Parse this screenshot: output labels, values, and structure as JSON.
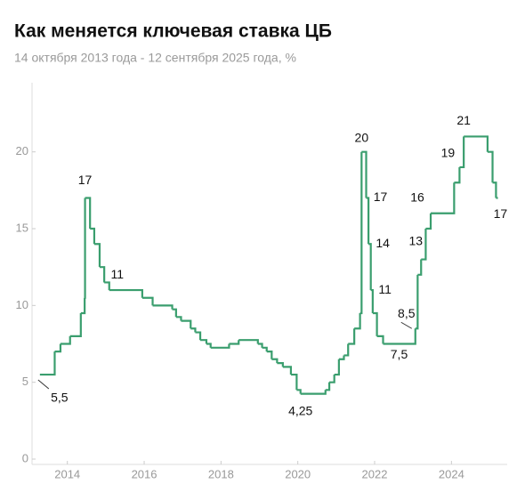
{
  "chart_data": {
    "type": "step",
    "title": "Как меняется ключевая ставка ЦБ",
    "subtitle": "14 октября 2013 года - 12 сентября 2025 года, %",
    "color": "#3a9e6e",
    "x": [
      2013.785,
      2014.17,
      2014.32,
      2014.57,
      2014.85,
      2014.95,
      2014.96,
      2015.09,
      2015.2,
      2015.34,
      2015.46,
      2015.59,
      2016.45,
      2016.72,
      2017.23,
      2017.33,
      2017.46,
      2017.71,
      2017.83,
      2017.96,
      2018.12,
      2018.23,
      2018.71,
      2018.96,
      2019.46,
      2019.57,
      2019.69,
      2019.82,
      2019.96,
      2020.11,
      2020.32,
      2020.47,
      2020.57,
      2021.22,
      2021.32,
      2021.45,
      2021.57,
      2021.7,
      2021.81,
      2021.97,
      2022.12,
      2022.16,
      2022.28,
      2022.34,
      2022.4,
      2022.45,
      2022.56,
      2022.72,
      2023.56,
      2023.62,
      2023.71,
      2023.83,
      2023.96,
      2024.57,
      2024.71,
      2024.82,
      2025.44,
      2025.57,
      2025.66,
      2025.7
    ],
    "values": [
      5.5,
      7,
      7.5,
      8,
      9.5,
      10.5,
      17,
      15,
      14,
      12.5,
      11.5,
      11,
      10.5,
      10,
      9.75,
      9.25,
      9,
      8.5,
      8.25,
      7.75,
      7.5,
      7.25,
      7.5,
      7.75,
      7.5,
      7.25,
      7,
      6.5,
      6.25,
      6,
      5.5,
      4.5,
      4.25,
      4.5,
      5,
      5.5,
      6.5,
      6.75,
      7.5,
      8.5,
      9.5,
      20,
      17,
      14,
      11,
      9.5,
      8,
      7.5,
      8.5,
      12,
      13,
      15,
      16,
      18,
      19,
      21,
      20,
      18,
      17,
      17
    ],
    "xlim": [
      2013.58,
      2025.72
    ],
    "ylim": [
      0,
      24.5
    ],
    "yticks": [
      0,
      5,
      10,
      15,
      20
    ],
    "xticks": [
      {
        "value": 2014.5,
        "label": "2014"
      },
      {
        "value": 2016.5,
        "label": "2016"
      },
      {
        "value": 2018.5,
        "label": "2018"
      },
      {
        "value": 2020.5,
        "label": "2020"
      },
      {
        "value": 2022.5,
        "label": "2022"
      },
      {
        "value": 2024.5,
        "label": "2024"
      }
    ],
    "annotations": [
      {
        "label": "5,5",
        "x": 2013.785,
        "value": 5.5
      },
      {
        "label": "17",
        "x": 2014.96,
        "value": 17
      },
      {
        "label": "11",
        "x": 2015.8,
        "value": 11
      },
      {
        "label": "4,25",
        "x": 2020.57,
        "value": 4.25
      },
      {
        "label": "20",
        "x": 2022.16,
        "value": 20
      },
      {
        "label": "17",
        "x": 2022.28,
        "value": 17
      },
      {
        "label": "14",
        "x": 2022.34,
        "value": 14
      },
      {
        "label": "11",
        "x": 2022.4,
        "value": 11
      },
      {
        "label": "7,5",
        "x": 2022.72,
        "value": 7.5
      },
      {
        "label": "8,5",
        "x": 2023.56,
        "value": 8.5
      },
      {
        "label": "13",
        "x": 2023.71,
        "value": 13
      },
      {
        "label": "16",
        "x": 2023.96,
        "value": 16
      },
      {
        "label": "19",
        "x": 2024.71,
        "value": 19
      },
      {
        "label": "21",
        "x": 2024.82,
        "value": 21
      },
      {
        "label": "17",
        "x": 2025.66,
        "value": 17
      }
    ]
  }
}
